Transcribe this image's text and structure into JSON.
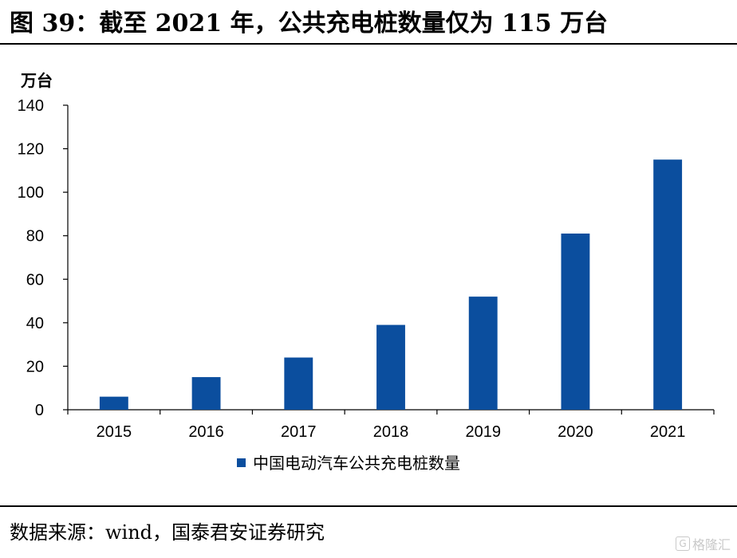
{
  "header": {
    "title": "图 39：截至 2021 年，公共充电桩数量仅为 115 万台"
  },
  "footer": {
    "source": "数据来源：wind，国泰君安证券研究"
  },
  "watermark": {
    "text": "格隆汇",
    "icon": "G"
  },
  "chart_data": {
    "type": "bar",
    "title": "图 39：截至 2021 年，公共充电桩数量仅为 115 万台",
    "ylabel": "万台",
    "xlabel": "",
    "categories": [
      "2015",
      "2016",
      "2017",
      "2018",
      "2019",
      "2020",
      "2021"
    ],
    "series": [
      {
        "name": "中国电动汽车公共充电桩数量",
        "values": [
          6,
          15,
          24,
          39,
          52,
          81,
          115
        ],
        "color": "#0B4E9E"
      }
    ],
    "ylim": [
      0,
      140
    ],
    "yticks": [
      0,
      20,
      40,
      60,
      80,
      100,
      120,
      140
    ],
    "grid": false,
    "legend": "bottom-center"
  }
}
